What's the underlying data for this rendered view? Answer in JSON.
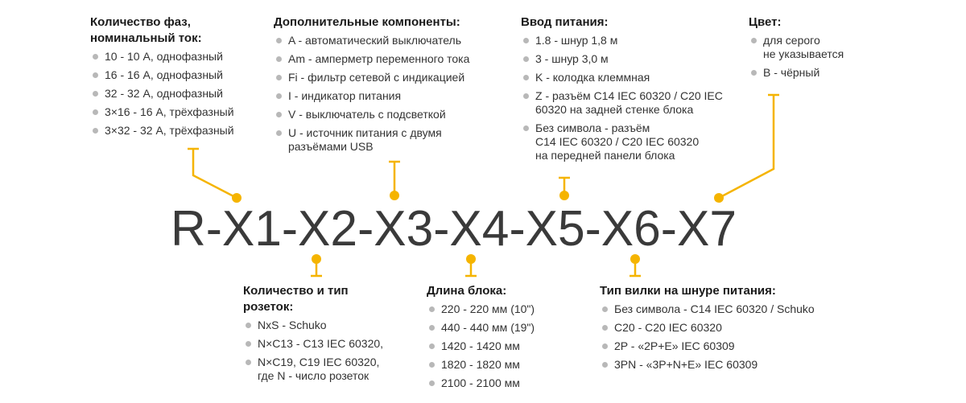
{
  "code": "R-X1-X2-X3-X4-X5-X6-X7",
  "accent_color": "#f5b400",
  "bullet_color": "#b8b8b8",
  "blocks": {
    "x1": {
      "title": "Количество фаз,\nноминальный ток:",
      "items": [
        "10 - 10 А, однофазный",
        "16 - 16 А, однофазный",
        "32 - 32 А, однофазный",
        "3×16 - 16 А, трёхфазный",
        "3×32 - 32 А, трёхфазный"
      ]
    },
    "x3": {
      "title": "Дополнительные компоненты:",
      "items": [
        "A - автоматический выключатель",
        "Am - амперметр переменного тока",
        "Fi - фильтр сетевой с индикацией",
        "I - индикатор питания",
        "V - выключатель с подсветкой",
        "U - источник питания с двумя\nразъёмами USB"
      ]
    },
    "x5": {
      "title": "Ввод питания:",
      "items": [
        "1.8 - шнур 1,8 м",
        "3 - шнур 3,0 м",
        "K - колодка клеммная",
        "Z - разъём C14 IEC 60320 / C20 IEC\n60320 на задней стенке блока",
        "Без символа - разъём\nC14 IEC 60320 / C20 IEC 60320\nна передней панели блока"
      ]
    },
    "x7": {
      "title": "Цвет:",
      "items": [
        "для серого\nне указывается",
        "B - чёрный"
      ]
    },
    "x2": {
      "title": "Количество и тип\nрозеток:",
      "items": [
        "NxS - Schuko",
        "N×C13 - C13 IEC 60320,",
        "N×C19, C19 IEC 60320,\nгде N - число розеток"
      ]
    },
    "x4": {
      "title": "Длина блока:",
      "items": [
        "220 - 220 мм (10\")",
        "440 - 440 мм (19\")",
        "1420 - 1420 мм",
        "1820 - 1820 мм",
        "2100 - 2100 мм"
      ]
    },
    "x6": {
      "title": "Тип вилки на шнуре питания:",
      "items": [
        "Без символа - C14 IEC 60320 / Schuko",
        "C20 - C20 IEC 60320",
        "2P - «2P+E» IEC 60309",
        "3PN - «3P+N+E» IEC 60309"
      ]
    }
  }
}
